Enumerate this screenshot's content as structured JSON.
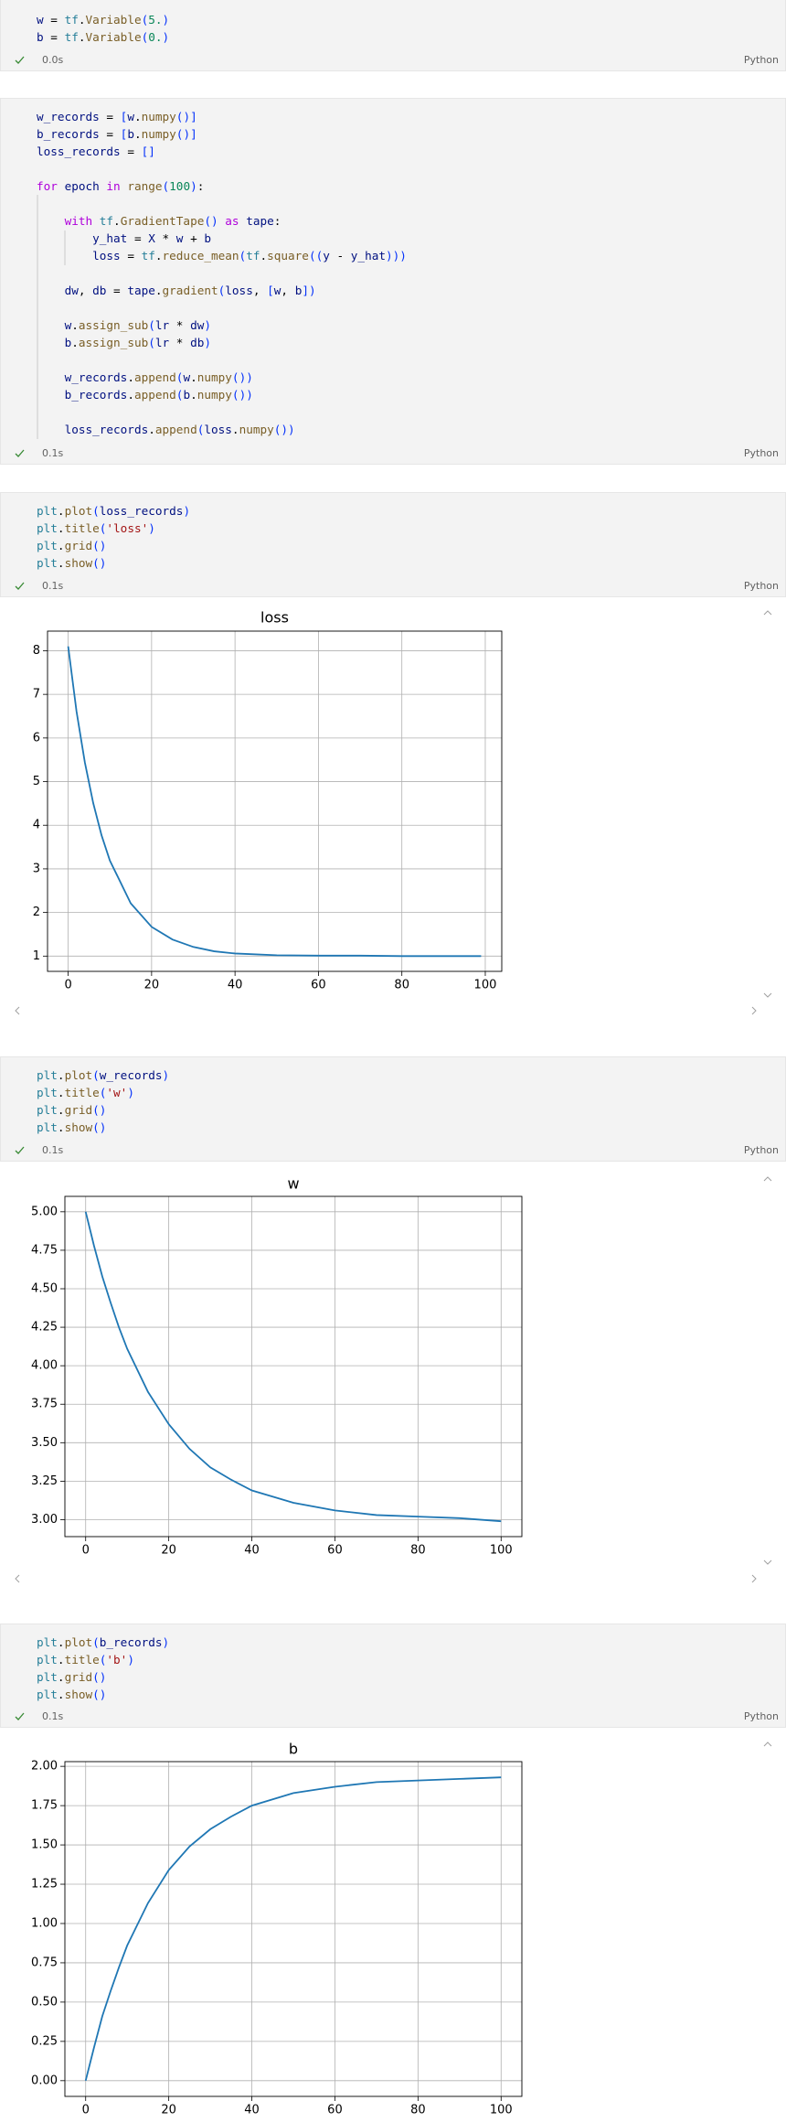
{
  "cells": [
    {
      "code": [
        [
          "w = tf.Variable(5.)",
          "b = tf.Variable(0.)"
        ]
      ],
      "time": "0.0s",
      "language": "Python"
    },
    {
      "code": [
        [
          "w_records = [w.numpy()]",
          "b_records = [b.numpy()]",
          "loss_records = []"
        ],
        [
          "for epoch in range(100):"
        ],
        [
          "    with tf.GradientTape() as tape:",
          "        y_hat = X * w + b",
          "        loss = tf.reduce_mean(tf.square((y - y_hat)))"
        ],
        [
          "    dw, db = tape.gradient(loss, [w, b])"
        ],
        [
          "    w.assign_sub(lr * dw)",
          "    b.assign_sub(lr * db)"
        ],
        [
          "    w_records.append(w.numpy())",
          "    b_records.append(b.numpy())"
        ],
        [
          "    loss_records.append(loss.numpy())"
        ]
      ],
      "time": "0.1s",
      "language": "Python"
    },
    {
      "code": [
        [
          "plt.plot(loss_records)",
          "plt.title('loss')",
          "plt.grid()",
          "plt.show()"
        ]
      ],
      "time": "0.1s",
      "language": "Python"
    },
    {
      "code": [
        [
          "plt.plot(w_records)",
          "plt.title('w')",
          "plt.grid()",
          "plt.show()"
        ]
      ],
      "time": "0.1s",
      "language": "Python"
    },
    {
      "code": [
        [
          "plt.plot(b_records)",
          "plt.title('b')",
          "plt.grid()",
          "plt.show()"
        ]
      ],
      "time": "0.1s",
      "language": "Python"
    }
  ],
  "chart_data": [
    {
      "type": "line",
      "title": "loss",
      "color": "#1f77b4",
      "grid": true,
      "x": [
        0,
        2,
        4,
        6,
        8,
        10,
        15,
        20,
        25,
        30,
        35,
        40,
        50,
        60,
        70,
        80,
        90,
        99
      ],
      "values": [
        8.1,
        6.61,
        5.44,
        4.51,
        3.77,
        3.19,
        2.21,
        1.67,
        1.38,
        1.21,
        1.11,
        1.06,
        1.02,
        1.01,
        1.01,
        1.0,
        1.0,
        1.0
      ],
      "xlim": [
        -4.95,
        103.95
      ],
      "xticks": [
        0,
        20,
        40,
        60,
        80,
        100
      ],
      "ylim": [
        0.65,
        8.45
      ],
      "yticks": [
        1,
        2,
        3,
        4,
        5,
        6,
        7,
        8
      ]
    },
    {
      "type": "line",
      "title": "w",
      "color": "#1f77b4",
      "grid": true,
      "x": [
        0,
        2,
        4,
        6,
        8,
        10,
        15,
        20,
        25,
        30,
        35,
        40,
        50,
        60,
        70,
        80,
        90,
        100
      ],
      "values": [
        5.0,
        4.78,
        4.58,
        4.41,
        4.25,
        4.11,
        3.83,
        3.62,
        3.46,
        3.34,
        3.26,
        3.19,
        3.11,
        3.06,
        3.03,
        3.02,
        3.01,
        2.99
      ],
      "xlim": [
        -5,
        105
      ],
      "xticks": [
        0,
        20,
        40,
        60,
        80,
        100
      ],
      "ylim": [
        2.89,
        5.1
      ],
      "yticks": [
        {
          "value": 3,
          "label": "3.00"
        },
        {
          "value": 3.25,
          "label": "3.25"
        },
        {
          "value": 3.5,
          "label": "3.50"
        },
        {
          "value": 3.75,
          "label": "3.75"
        },
        {
          "value": 4,
          "label": "4.00"
        },
        {
          "value": 4.25,
          "label": "4.25"
        },
        {
          "value": 4.5,
          "label": "4.50"
        },
        {
          "value": 4.75,
          "label": "4.75"
        },
        {
          "value": 5,
          "label": "5.00"
        }
      ]
    },
    {
      "type": "line",
      "title": "b",
      "color": "#1f77b4",
      "grid": true,
      "x": [
        0,
        2,
        4,
        6,
        8,
        10,
        15,
        20,
        25,
        30,
        35,
        40,
        50,
        60,
        70,
        80,
        90,
        100
      ],
      "values": [
        0,
        0.21,
        0.41,
        0.57,
        0.72,
        0.86,
        1.13,
        1.34,
        1.49,
        1.6,
        1.68,
        1.75,
        1.83,
        1.87,
        1.9,
        1.91,
        1.92,
        1.93
      ],
      "xlim": [
        -5,
        105
      ],
      "xticks": [
        0,
        20,
        40,
        60,
        80,
        100
      ],
      "ylim": [
        -0.1,
        2.03
      ],
      "yticks": [
        {
          "value": 0,
          "label": "0.00"
        },
        {
          "value": 0.25,
          "label": "0.25"
        },
        {
          "value": 0.5,
          "label": "0.50"
        },
        {
          "value": 0.75,
          "label": "0.75"
        },
        {
          "value": 1,
          "label": "1.00"
        },
        {
          "value": 1.25,
          "label": "1.25"
        },
        {
          "value": 1.5,
          "label": "1.50"
        },
        {
          "value": 1.75,
          "label": "1.75"
        },
        {
          "value": 2,
          "label": "2.00"
        }
      ]
    }
  ]
}
